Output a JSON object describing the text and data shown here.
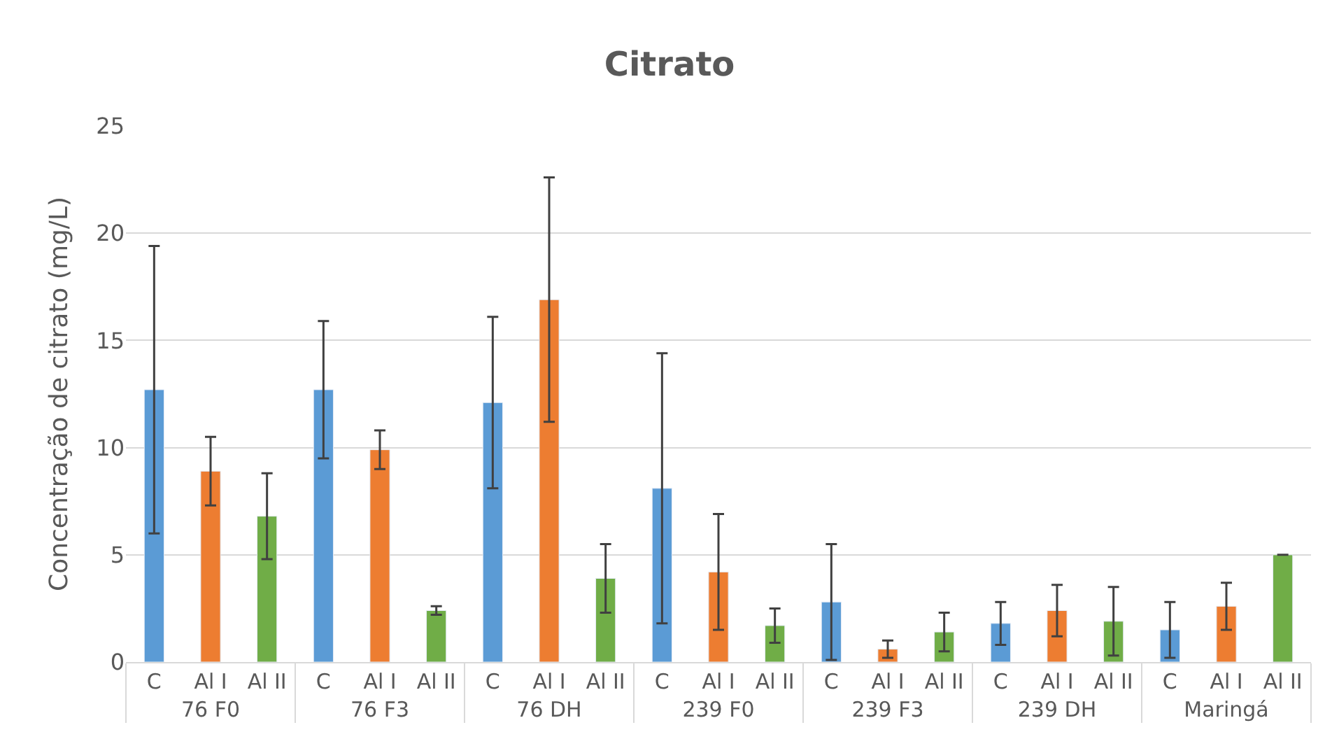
{
  "chart_data": {
    "type": "bar",
    "title": "Citrato",
    "ylabel": "Concentração de citrato (mg/L)",
    "categories": [
      "76 F0",
      "76 F3",
      "76 DH",
      "239 F0",
      "239 F3",
      "239 DH",
      "Maringá"
    ],
    "series": [
      {
        "name": "C",
        "color": "#5b9bd5",
        "values": [
          12.7,
          12.7,
          12.1,
          8.1,
          2.8,
          1.8,
          1.5
        ],
        "errors": [
          6.7,
          3.2,
          4.0,
          6.3,
          2.7,
          1.0,
          1.3
        ]
      },
      {
        "name": "Al I",
        "color": "#ed7d31",
        "values": [
          8.9,
          9.9,
          16.9,
          4.2,
          0.6,
          2.4,
          2.6
        ],
        "errors": [
          1.6,
          0.9,
          5.7,
          2.7,
          0.4,
          1.2,
          1.1
        ]
      },
      {
        "name": "Al II",
        "color": "#70ad47",
        "values": [
          6.8,
          2.4,
          3.9,
          1.7,
          1.4,
          1.9,
          5.0
        ],
        "errors": [
          2.0,
          0.2,
          1.6,
          0.8,
          0.9,
          1.6,
          0
        ]
      }
    ],
    "ylim": [
      0,
      25
    ],
    "yticks": [
      0,
      5,
      10,
      15,
      20,
      25
    ],
    "grid": "y",
    "legend": false
  }
}
